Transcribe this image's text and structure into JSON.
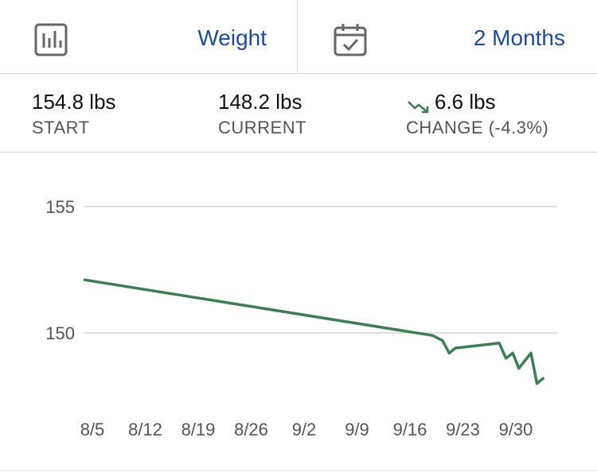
{
  "header": {
    "metric_label": "Weight",
    "metric_icon": "bar-chart-icon",
    "range_label": "2 Months",
    "range_icon": "calendar-check-icon"
  },
  "stats": {
    "start": {
      "value": "154.8 lbs",
      "label": "START"
    },
    "current": {
      "value": "148.2 lbs",
      "label": "CURRENT"
    },
    "change": {
      "value": "6.6 lbs",
      "label": "CHANGE (-4.3%)",
      "direction": "down",
      "icon": "trend-down-icon"
    }
  },
  "colors": {
    "accent": "#1f4a96",
    "line": "#3f7d55",
    "grid": "#d6d6d6",
    "tick": "#555555"
  },
  "chart_data": {
    "type": "line",
    "ylim": [
      147.5,
      155.8
    ],
    "yticks": [
      150,
      155
    ],
    "ytick_labels": [
      "150",
      "155"
    ],
    "grid": true,
    "x_ticks": [
      {
        "day": 0,
        "label": "8/5"
      },
      {
        "day": 7,
        "label": "8/12"
      },
      {
        "day": 14,
        "label": "8/19"
      },
      {
        "day": 21,
        "label": "8/26"
      },
      {
        "day": 28,
        "label": "9/2"
      },
      {
        "day": 35,
        "label": "9/9"
      },
      {
        "day": 42,
        "label": "9/16"
      },
      {
        "day": 49,
        "label": "9/23"
      },
      {
        "day": 56,
        "label": "9/30"
      }
    ],
    "series": [
      {
        "points": [
          {
            "x": -1.0,
            "y": 152.1
          },
          {
            "x": 45.0,
            "y": 149.9
          },
          {
            "x": 46.3,
            "y": 149.7
          },
          {
            "x": 47.2,
            "y": 149.2
          },
          {
            "x": 48.0,
            "y": 149.4
          },
          {
            "x": 53.8,
            "y": 149.6
          },
          {
            "x": 54.7,
            "y": 149.0
          },
          {
            "x": 55.6,
            "y": 149.2
          },
          {
            "x": 56.4,
            "y": 148.6
          },
          {
            "x": 58.0,
            "y": 149.2
          },
          {
            "x": 58.8,
            "y": 148.0
          },
          {
            "x": 59.6,
            "y": 148.2
          }
        ]
      }
    ]
  }
}
